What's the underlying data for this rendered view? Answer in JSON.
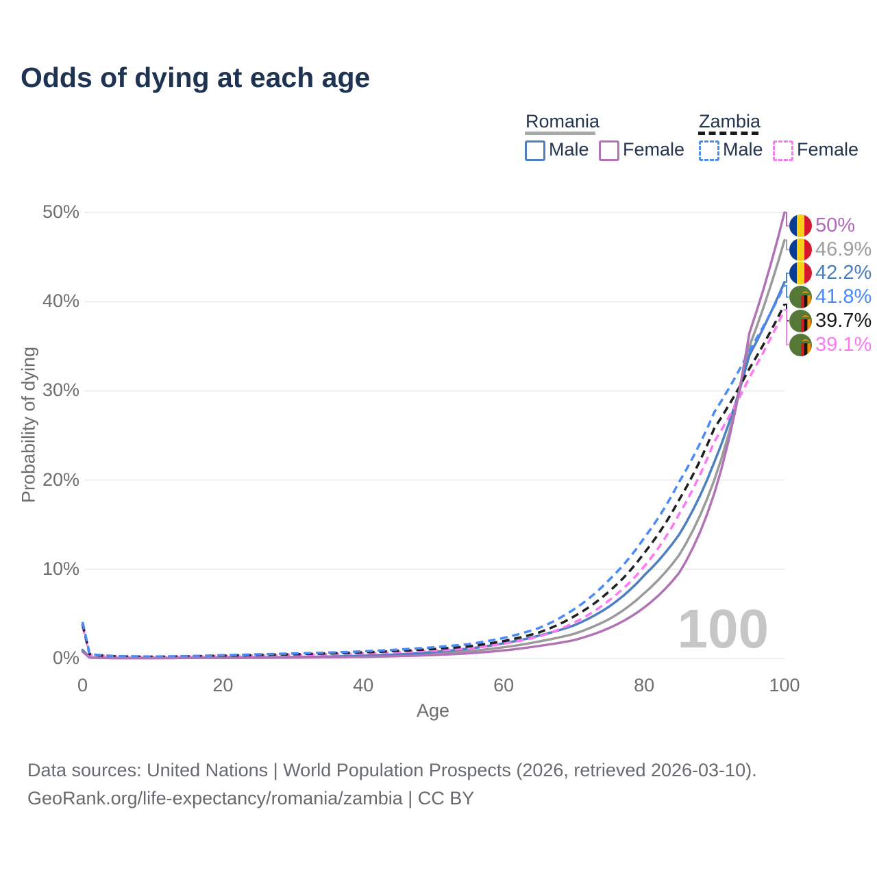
{
  "title": "Odds of dying at each age",
  "watermark": "100",
  "legend": {
    "groups": [
      {
        "name": "Romania",
        "line_style": "solid",
        "underline_color": "#a8a8a8",
        "items": [
          {
            "label": "Male",
            "color": "#4e7fc1",
            "dashed": false
          },
          {
            "label": "Female",
            "color": "#b273b6",
            "dashed": false
          }
        ]
      },
      {
        "name": "Zambia",
        "line_style": "dashed",
        "underline_color": "#1a1a1a",
        "items": [
          {
            "label": "Male",
            "color": "#4b8bf5",
            "dashed": true
          },
          {
            "label": "Female",
            "color": "#fb7af3",
            "dashed": true
          }
        ]
      }
    ]
  },
  "chart_data": {
    "type": "line",
    "title": "Odds of dying at each age",
    "xlabel": "Age",
    "ylabel": "Probability of dying",
    "xlim": [
      0,
      100
    ],
    "ylim": [
      0,
      50
    ],
    "grid": "horizontal-only",
    "x_ticks": [
      0,
      20,
      40,
      60,
      80,
      100
    ],
    "y_ticks": [
      0,
      10,
      20,
      30,
      40,
      50
    ],
    "y_tick_labels": [
      "0%",
      "10%",
      "20%",
      "30%",
      "40%",
      "50%"
    ],
    "ages": [
      0,
      1,
      2,
      5,
      10,
      15,
      20,
      25,
      30,
      35,
      40,
      45,
      50,
      55,
      60,
      65,
      70,
      75,
      80,
      85,
      90,
      95,
      100
    ],
    "series": [
      {
        "name": "Romania total",
        "country": "Romania",
        "sex": "both",
        "color": "#9a9a9a",
        "dashed": false,
        "values": [
          0.85,
          0.1,
          0.07,
          0.04,
          0.04,
          0.06,
          0.08,
          0.1,
          0.12,
          0.17,
          0.24,
          0.35,
          0.53,
          0.82,
          1.25,
          1.9,
          2.75,
          4.4,
          7.3,
          11.6,
          20.0,
          35.0,
          46.9
        ]
      },
      {
        "name": "Romania male",
        "country": "Romania",
        "sex": "male",
        "color": "#4e7fc1",
        "dashed": false,
        "values": [
          0.95,
          0.12,
          0.08,
          0.05,
          0.05,
          0.08,
          0.1,
          0.12,
          0.15,
          0.21,
          0.31,
          0.46,
          0.72,
          1.1,
          1.7,
          2.55,
          3.7,
          5.8,
          9.3,
          13.9,
          22.0,
          34.0,
          42.2
        ]
      },
      {
        "name": "Zambia female",
        "country": "Zambia",
        "sex": "female",
        "color": "#fb7af3",
        "dashed": true,
        "values": [
          3.6,
          0.45,
          0.33,
          0.21,
          0.17,
          0.2,
          0.26,
          0.33,
          0.4,
          0.47,
          0.57,
          0.71,
          0.87,
          1.12,
          1.65,
          2.45,
          4.0,
          6.5,
          10.3,
          16.2,
          24.3,
          31.5,
          39.1
        ]
      },
      {
        "name": "Zambia total",
        "country": "Zambia",
        "sex": "both",
        "color": "#1f1f1f",
        "dashed": true,
        "values": [
          3.85,
          0.5,
          0.36,
          0.23,
          0.19,
          0.23,
          0.31,
          0.39,
          0.47,
          0.56,
          0.68,
          0.85,
          1.05,
          1.35,
          1.95,
          2.9,
          4.7,
          7.5,
          11.8,
          17.8,
          25.8,
          32.5,
          39.7
        ]
      },
      {
        "name": "Zambia male",
        "country": "Zambia",
        "sex": "male",
        "color": "#4b8bf5",
        "dashed": true,
        "values": [
          4.1,
          0.55,
          0.4,
          0.26,
          0.21,
          0.26,
          0.36,
          0.46,
          0.56,
          0.66,
          0.8,
          1.0,
          1.25,
          1.6,
          2.3,
          3.4,
          5.5,
          8.8,
          13.5,
          19.8,
          27.6,
          34.5,
          41.8
        ]
      },
      {
        "name": "Romania female",
        "country": "Romania",
        "sex": "female",
        "color": "#b273b6",
        "dashed": false,
        "values": [
          0.75,
          0.09,
          0.06,
          0.03,
          0.03,
          0.05,
          0.06,
          0.07,
          0.09,
          0.13,
          0.18,
          0.26,
          0.38,
          0.58,
          0.9,
          1.4,
          2.05,
          3.4,
          5.7,
          9.6,
          18.5,
          36.5,
          50.0
        ]
      }
    ],
    "end_labels": [
      {
        "text": "50%",
        "value": 50.0,
        "color": "#b06ab8",
        "flag": "romania",
        "series": "Romania female"
      },
      {
        "text": "46.9%",
        "value": 46.9,
        "color": "#9e9e9e",
        "flag": "romania",
        "series": "Romania total"
      },
      {
        "text": "42.2%",
        "value": 42.2,
        "color": "#4a7dbf",
        "flag": "romania",
        "series": "Romania male"
      },
      {
        "text": "41.8%",
        "value": 41.8,
        "color": "#4b8bf5",
        "flag": "zambia",
        "series": "Zambia male"
      },
      {
        "text": "39.7%",
        "value": 39.7,
        "color": "#1a1a1a",
        "flag": "zambia",
        "series": "Zambia total"
      },
      {
        "text": "39.1%",
        "value": 39.1,
        "color": "#fb7af3",
        "flag": "zambia",
        "series": "Zambia female"
      }
    ]
  },
  "flag_colors": {
    "romania": {
      "blue": "#0a3d91",
      "yellow": "#f7d117",
      "red": "#d6182e"
    },
    "zambia": {
      "green": "#567836",
      "red": "#cd2026",
      "black": "#151515",
      "orange": "#ef8a00",
      "eagle": "#f0900a"
    }
  },
  "footer": {
    "line1": "Data sources: United Nations | World Population Prospects (2026, retrieved 2026-03-10).",
    "line2": "GeoRank.org/life-expectancy/romania/zambia | CC BY"
  }
}
